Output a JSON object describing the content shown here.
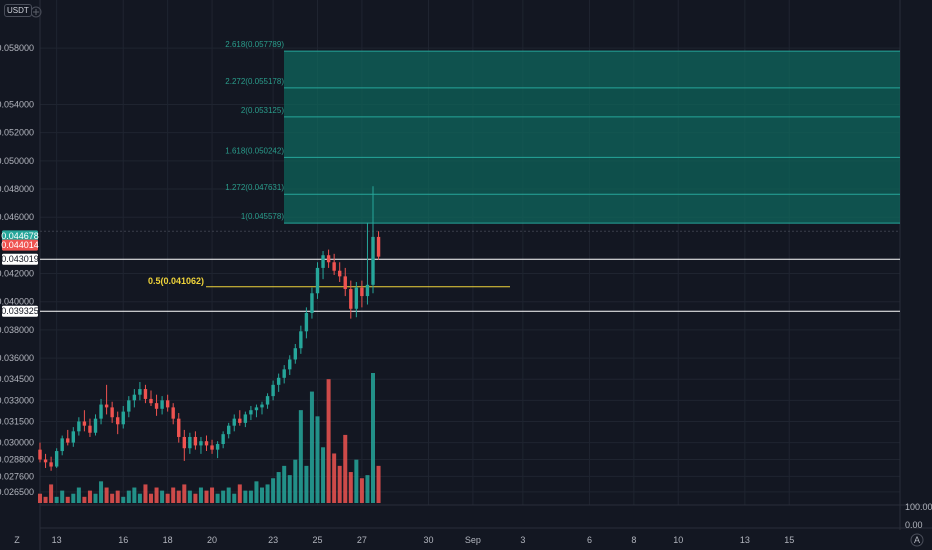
{
  "chart_data": {
    "type": "candlestick",
    "quote_currency": "USDT",
    "price_axis": {
      "ylim": [
        0.0255,
        0.0595
      ],
      "tick_labels": [
        "0.058000",
        "0.054000",
        "0.052000",
        "0.050000",
        "0.048000",
        "0.046000",
        "0.042000",
        "0.040000",
        "0.038000",
        "0.036000",
        "0.034500",
        "0.033000",
        "0.031500",
        "0.030000",
        "0.028800",
        "0.027600",
        "0.026500"
      ],
      "tick_values": [
        0.058,
        0.054,
        0.052,
        0.05,
        0.048,
        0.046,
        0.042,
        0.04,
        0.038,
        0.036,
        0.0345,
        0.033,
        0.0315,
        0.03,
        0.0288,
        0.0276,
        0.0265
      ],
      "price_tags": [
        {
          "label": "0.044678",
          "value": 0.044678,
          "bg": "#26a69a",
          "fg": "#ffffff"
        },
        {
          "label": "0.044014",
          "value": 0.044014,
          "bg": "#ef5350",
          "fg": "#ffffff"
        },
        {
          "label": "0.043019",
          "value": 0.043019,
          "bg": "#ffffff",
          "fg": "#131722"
        },
        {
          "label": "0.039325",
          "value": 0.039325,
          "bg": "#ffffff",
          "fg": "#131722"
        }
      ]
    },
    "indicator_axis": {
      "tick_labels": [
        "100.00",
        "0.00"
      ]
    },
    "time_axis": {
      "labels": [
        "13",
        "16",
        "18",
        "20",
        "23",
        "25",
        "27",
        "30",
        "Sep",
        "3",
        "6",
        "8",
        "10",
        "13",
        "15"
      ],
      "label_bar_index": [
        3,
        15,
        23,
        31,
        42,
        50,
        58,
        70,
        78,
        87,
        99,
        107,
        115,
        127,
        135
      ]
    },
    "horizontal_lines": [
      {
        "value": 0.043019,
        "color": "#ffffff"
      },
      {
        "value": 0.039325,
        "color": "#ffffff"
      }
    ],
    "fib_half": {
      "label": "0.5(0.041062)",
      "value": 0.041062,
      "color": "#f0d43a"
    },
    "fib_extension": {
      "color": "#26a69a",
      "levels": [
        {
          "label": "1(0.045578)",
          "value": 0.045578
        },
        {
          "label": "1.272(0.047631)",
          "value": 0.047631
        },
        {
          "label": "1.618(0.050242)",
          "value": 0.050242
        },
        {
          "label": "2(0.053125)",
          "value": 0.053125
        },
        {
          "label": "2.272(0.055178)",
          "value": 0.055178
        },
        {
          "label": "2.618(0.057789)",
          "value": 0.057789
        }
      ]
    },
    "series": [
      {
        "name": "",
        "style": "candles",
        "bull_color": "#26a69a",
        "bear_color": "#ef5350",
        "ohlc": [
          [
            0.0295,
            0.03,
            0.0286,
            0.0288
          ],
          [
            0.0288,
            0.0292,
            0.0282,
            0.0286
          ],
          [
            0.0286,
            0.029,
            0.028,
            0.0283
          ],
          [
            0.0283,
            0.0296,
            0.0282,
            0.0294
          ],
          [
            0.0294,
            0.0305,
            0.0291,
            0.0303
          ],
          [
            0.0303,
            0.0309,
            0.0298,
            0.03
          ],
          [
            0.03,
            0.0311,
            0.0297,
            0.0308
          ],
          [
            0.0308,
            0.0318,
            0.0305,
            0.0315
          ],
          [
            0.0315,
            0.0323,
            0.0308,
            0.0312
          ],
          [
            0.0312,
            0.0317,
            0.0304,
            0.0307
          ],
          [
            0.0307,
            0.032,
            0.0305,
            0.0317
          ],
          [
            0.0317,
            0.0331,
            0.0313,
            0.0327
          ],
          [
            0.0327,
            0.0341,
            0.032,
            0.0325
          ],
          [
            0.0325,
            0.0329,
            0.0314,
            0.0318
          ],
          [
            0.0318,
            0.0322,
            0.0306,
            0.0313
          ],
          [
            0.0313,
            0.0326,
            0.031,
            0.0322
          ],
          [
            0.0322,
            0.0333,
            0.0318,
            0.033
          ],
          [
            0.033,
            0.0338,
            0.0325,
            0.0334
          ],
          [
            0.0334,
            0.0343,
            0.033,
            0.0338
          ],
          [
            0.0338,
            0.0341,
            0.0328,
            0.0331
          ],
          [
            0.0331,
            0.0337,
            0.0326,
            0.0328
          ],
          [
            0.0328,
            0.0334,
            0.0319,
            0.0324
          ],
          [
            0.0324,
            0.0333,
            0.032,
            0.033
          ],
          [
            0.033,
            0.0334,
            0.0322,
            0.0325
          ],
          [
            0.0325,
            0.0328,
            0.0313,
            0.0317
          ],
          [
            0.0317,
            0.0321,
            0.03,
            0.0304
          ],
          [
            0.0304,
            0.0309,
            0.0287,
            0.0296
          ],
          [
            0.0296,
            0.0307,
            0.0292,
            0.0304
          ],
          [
            0.0304,
            0.0308,
            0.0295,
            0.0298
          ],
          [
            0.0298,
            0.0304,
            0.0292,
            0.0301
          ],
          [
            0.0301,
            0.0305,
            0.0294,
            0.0298
          ],
          [
            0.0298,
            0.0302,
            0.0292,
            0.0295
          ],
          [
            0.0295,
            0.0301,
            0.0289,
            0.0299
          ],
          [
            0.0299,
            0.0308,
            0.0296,
            0.0306
          ],
          [
            0.0306,
            0.0314,
            0.0303,
            0.0312
          ],
          [
            0.0312,
            0.032,
            0.0308,
            0.0317
          ],
          [
            0.0317,
            0.0323,
            0.0312,
            0.0314
          ],
          [
            0.0314,
            0.0322,
            0.0311,
            0.032
          ],
          [
            0.032,
            0.0326,
            0.0316,
            0.0323
          ],
          [
            0.0323,
            0.0327,
            0.0318,
            0.0325
          ],
          [
            0.0325,
            0.0329,
            0.032,
            0.0327
          ],
          [
            0.0327,
            0.0335,
            0.0324,
            0.0333
          ],
          [
            0.0333,
            0.0344,
            0.033,
            0.0341
          ],
          [
            0.0341,
            0.0349,
            0.0336,
            0.0346
          ],
          [
            0.0346,
            0.0355,
            0.0342,
            0.0352
          ],
          [
            0.0352,
            0.0362,
            0.0348,
            0.0359
          ],
          [
            0.0359,
            0.037,
            0.0356,
            0.0367
          ],
          [
            0.0367,
            0.0383,
            0.0363,
            0.0379
          ],
          [
            0.0379,
            0.0396,
            0.0374,
            0.0392
          ],
          [
            0.0392,
            0.041,
            0.0388,
            0.0406
          ],
          [
            0.0406,
            0.0428,
            0.0402,
            0.0424
          ],
          [
            0.0424,
            0.0436,
            0.0416,
            0.0433
          ],
          [
            0.0433,
            0.0437,
            0.0424,
            0.0428
          ],
          [
            0.0428,
            0.0434,
            0.0419,
            0.0422
          ],
          [
            0.0422,
            0.0428,
            0.0414,
            0.0418
          ],
          [
            0.0418,
            0.0424,
            0.0404,
            0.0409
          ],
          [
            0.0409,
            0.0415,
            0.0388,
            0.0395
          ],
          [
            0.0395,
            0.0414,
            0.0389,
            0.041
          ],
          [
            0.041,
            0.0415,
            0.0396,
            0.0404
          ],
          [
            0.0404,
            0.0456,
            0.0398,
            0.0412
          ],
          [
            0.0412,
            0.0482,
            0.0406,
            0.0446
          ],
          [
            0.0446,
            0.045,
            0.043,
            0.0432
          ]
        ]
      },
      {
        "name": "",
        "style": "volume",
        "values": [
          3,
          2,
          6,
          2,
          4,
          2,
          3,
          5,
          2,
          4,
          3,
          7,
          5,
          3,
          4,
          2,
          4,
          5,
          3,
          6,
          3,
          5,
          4,
          3,
          5,
          4,
          6,
          4,
          3,
          5,
          4,
          5,
          3,
          4,
          5,
          3,
          6,
          4,
          4,
          7,
          5,
          6,
          8,
          10,
          12,
          9,
          14,
          30,
          12,
          36,
          28,
          18,
          40,
          16,
          12,
          22,
          10,
          14,
          8,
          9,
          42,
          12
        ]
      }
    ]
  }
}
